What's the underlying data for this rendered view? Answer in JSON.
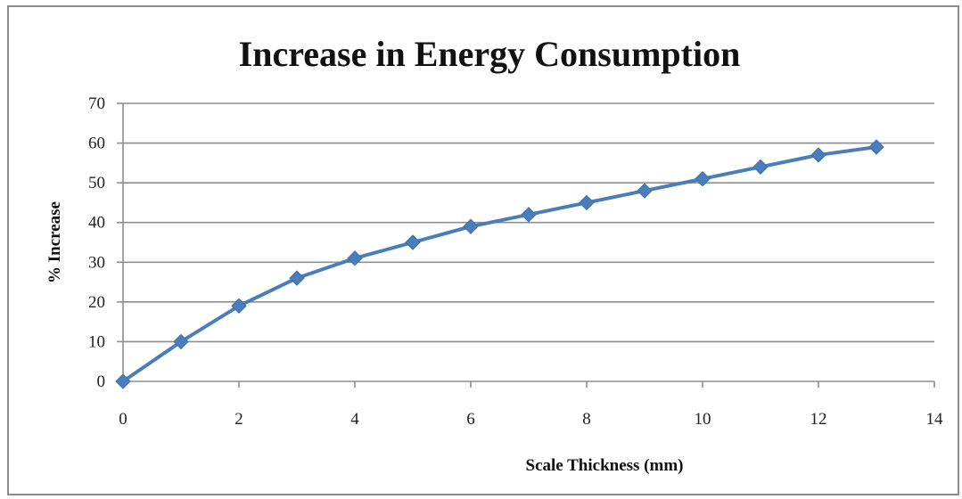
{
  "chart_data": {
    "type": "line",
    "title": "Increase in Energy Consumption",
    "xlabel": "Scale Thickness (mm)",
    "ylabel": "% Increase",
    "xlim": [
      0,
      14
    ],
    "ylim": [
      0,
      70
    ],
    "x_ticks": [
      0,
      2,
      4,
      6,
      8,
      10,
      12,
      14
    ],
    "y_ticks": [
      0,
      10,
      20,
      30,
      40,
      50,
      60,
      70
    ],
    "grid": true,
    "legend": "none",
    "series": [
      {
        "color": "#4a7ebb",
        "marker": "diamond",
        "x": [
          0,
          1,
          2,
          3,
          4,
          5,
          6,
          7,
          8,
          9,
          10,
          11,
          12,
          13
        ],
        "y": [
          0,
          10,
          19,
          26,
          31,
          35,
          39,
          42,
          45,
          48,
          51,
          54,
          57,
          59
        ]
      }
    ]
  }
}
